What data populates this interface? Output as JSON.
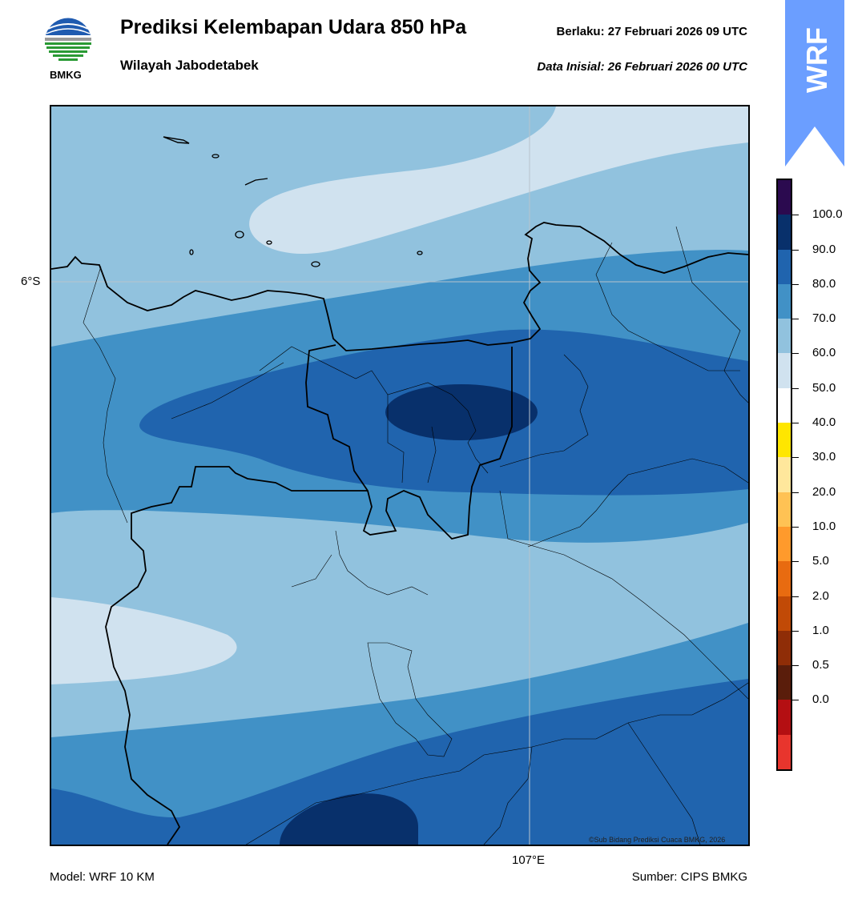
{
  "header": {
    "title": "Prediksi Kelembapan Udara 850 hPa",
    "subtitle": "Wilayah Jabodetabek",
    "valid_label": "Berlaku:  27 Februari 2026 09 UTC",
    "init_label": "Data Inisial:  26 Februari 2026 00 UTC",
    "logo_text": "BMKG"
  },
  "badge": {
    "text": "WRF",
    "color": "#6b9eff"
  },
  "map": {
    "lat_label": "6°S",
    "lon_label": "107°E",
    "copyright": "©Sub Bidang Prediksi Cuaca BMKG, 2026"
  },
  "footer": {
    "model": "Model: WRF 10 KM",
    "source": "Sumber: CIPS BMKG"
  },
  "colorbar": {
    "labels": [
      "100.0",
      "90.0",
      "80.0",
      "70.0",
      "60.0",
      "50.0",
      "40.0",
      "30.0",
      "20.0",
      "10.0",
      "5.0",
      "2.0",
      "1.0",
      "0.5",
      "0.0"
    ],
    "colors_top_to_bottom": [
      "#2b0a4f",
      "#08306b",
      "#2064ae",
      "#4191c6",
      "#91c2de",
      "#d0e2ef",
      "#ffffff",
      "#ffe600",
      "#ffe79c",
      "#ffc254",
      "#ff9a2c",
      "#e86b10",
      "#c14a06",
      "#8f2d07",
      "#5a1d0b",
      "#b40f12",
      "#e8352d"
    ]
  },
  "legend_colors": {
    "rh_50_60": "#d0e2ef",
    "rh_60_70": "#91c2de",
    "rh_70_80": "#4191c6",
    "rh_80_90": "#2064ae",
    "rh_90_100": "#08306b"
  }
}
